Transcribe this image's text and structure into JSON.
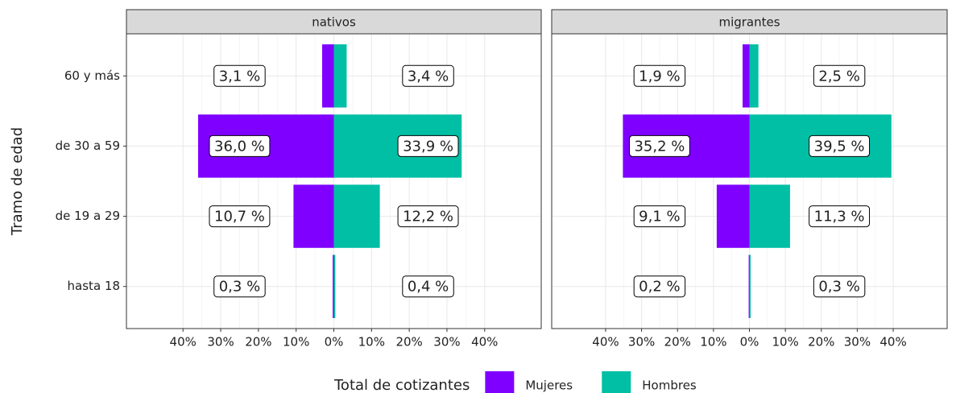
{
  "chart_data": {
    "type": "bar",
    "orientation": "horizontal",
    "y_label": "Tramo de edad",
    "legend_title": "Total de cotizantes",
    "legend_position": "bottom",
    "grid": true,
    "categories": [
      "hasta 18",
      "de 19 a 29",
      "de 30 a 59",
      "60 y más"
    ],
    "series": [
      {
        "name": "Mujeres",
        "color": "#7f00ff"
      },
      {
        "name": "Hombres",
        "color": "#00bfa5"
      }
    ],
    "xlim": [
      -55,
      55
    ],
    "xticks": [
      {
        "value": -40,
        "label": "40%"
      },
      {
        "value": -30,
        "label": "30%"
      },
      {
        "value": -20,
        "label": "20%"
      },
      {
        "value": -10,
        "label": "10%"
      },
      {
        "value": 0,
        "label": "0%"
      },
      {
        "value": 10,
        "label": "10%"
      },
      {
        "value": 20,
        "label": "20%"
      },
      {
        "value": 30,
        "label": "30%"
      },
      {
        "value": 40,
        "label": "40%"
      }
    ],
    "facets": [
      {
        "title": "nativos",
        "values": [
          [
            -0.3,
            -10.7,
            -36.0,
            -3.1
          ],
          [
            0.4,
            12.2,
            33.9,
            3.4
          ]
        ],
        "value_labels": [
          [
            "0,3 %",
            "10,7 %",
            "36,0 %",
            "3,1 %"
          ],
          [
            "0,4 %",
            "12,2 %",
            "33,9 %",
            "3,4 %"
          ]
        ]
      },
      {
        "title": "migrantes",
        "values": [
          [
            -0.2,
            -9.1,
            -35.2,
            -1.9
          ],
          [
            0.3,
            11.3,
            39.5,
            2.5
          ]
        ],
        "value_labels": [
          [
            "0,2 %",
            "9,1 %",
            "35,2 %",
            "1,9 %"
          ],
          [
            "0,3 %",
            "11,3 %",
            "39,5 %",
            "2,5 %"
          ]
        ]
      }
    ]
  }
}
